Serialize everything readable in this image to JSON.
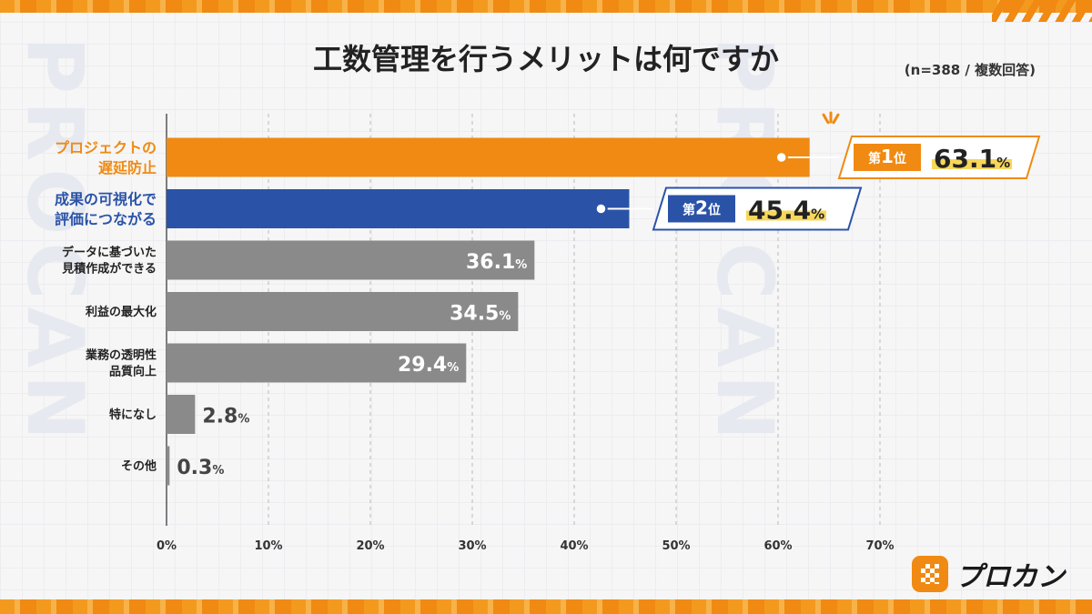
{
  "title": "工数管理を行うメリットは何ですか",
  "note": "(n=388 / 複数回答)",
  "watermark": "PROCAN",
  "brand": {
    "name": "プロカン"
  },
  "colors": {
    "first": "#f08a12",
    "second": "#2a53a8",
    "other": "#8a8a8a",
    "highlight": "#f7d65a",
    "grid": "#bbbbbb"
  },
  "rank_labels": {
    "first": {
      "prefix": "第",
      "num": "1",
      "suffix": "位"
    },
    "second": {
      "prefix": "第",
      "num": "2",
      "suffix": "位"
    }
  },
  "chart_data": {
    "type": "bar",
    "orientation": "horizontal",
    "categories": [
      [
        "プロジェクトの",
        "遅延防止"
      ],
      [
        "成果の可視化で",
        "評価につながる"
      ],
      [
        "データに基づいた",
        "見積作成ができる"
      ],
      [
        "利益の最大化"
      ],
      [
        "業務の透明性",
        "品質向上"
      ],
      [
        "特になし"
      ],
      [
        "その他"
      ]
    ],
    "values": [
      63.1,
      45.4,
      36.1,
      34.5,
      29.4,
      2.8,
      0.3
    ],
    "value_labels": [
      "63.1",
      "45.4",
      "36.1",
      "34.5",
      "29.4",
      "2.8",
      "0.3"
    ],
    "unit": "%",
    "xlim": [
      0,
      70
    ],
    "ticks": [
      "0%",
      "10%",
      "20%",
      "30%",
      "40%",
      "50%",
      "60%",
      "70%"
    ],
    "grid": true
  }
}
